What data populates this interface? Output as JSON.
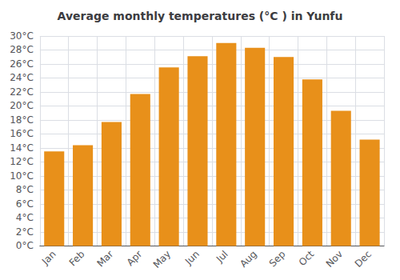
{
  "chart_data": {
    "type": "bar",
    "title": "Average monthly temperatures (°C ) in Yunfu",
    "categories": [
      "Jan",
      "Feb",
      "Mar",
      "Apr",
      "May",
      "Jun",
      "Jul",
      "Aug",
      "Sep",
      "Oct",
      "Nov",
      "Dec"
    ],
    "values": [
      13.5,
      14.4,
      17.7,
      21.7,
      25.5,
      27.1,
      29.0,
      28.3,
      27.0,
      23.8,
      19.3,
      15.2
    ],
    "color": "#E8901A",
    "ylim": [
      0,
      30
    ],
    "yticks": [
      {
        "value": 0,
        "label": "0°C"
      },
      {
        "value": 2,
        "label": "2°C"
      },
      {
        "value": 4,
        "label": "4°C"
      },
      {
        "value": 6,
        "label": "6°C"
      },
      {
        "value": 8,
        "label": "8°C"
      },
      {
        "value": 10,
        "label": "10°C"
      },
      {
        "value": 12,
        "label": "12°C"
      },
      {
        "value": 14,
        "label": "14°C"
      },
      {
        "value": 16,
        "label": "16°C"
      },
      {
        "value": 18,
        "label": "18°C"
      },
      {
        "value": 20,
        "label": "20°C"
      },
      {
        "value": 22,
        "label": "22°C"
      },
      {
        "value": 24,
        "label": "24°C"
      },
      {
        "value": 26,
        "label": "26°C"
      },
      {
        "value": 28,
        "label": "28°C"
      },
      {
        "value": 30,
        "label": "30°C"
      }
    ],
    "grid": true
  }
}
